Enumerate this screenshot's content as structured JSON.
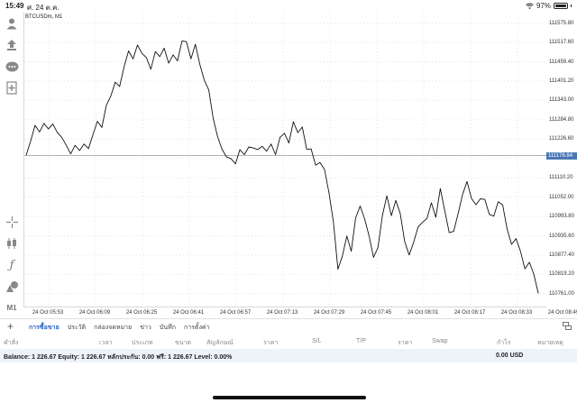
{
  "status_bar": {
    "time": "15:49",
    "date": "ศ. 24 ต.ค.",
    "battery": "97%"
  },
  "chart": {
    "symbol_label": "BTCUSDm, M1",
    "current_price": "111176.84",
    "y_ticks": [
      "111575.80",
      "111517.60",
      "111459.40",
      "111401.20",
      "111343.00",
      "111284.80",
      "111226.60",
      "111168.40",
      "111110.20",
      "111052.00",
      "110993.80",
      "110935.60",
      "110877.40",
      "110819.20",
      "110761.00"
    ],
    "x_ticks": [
      "24 Oct 05:53",
      "24 Oct 06:09",
      "24 Oct 06:25",
      "24 Oct 06:41",
      "24 Oct 06:57",
      "24 Oct 07:13",
      "24 Oct 07:29",
      "24 Oct 07:45",
      "24 Oct 08:01",
      "24 Oct 08:17",
      "24 Oct 08:33",
      "24 Oct 08:49"
    ]
  },
  "chart_data": {
    "type": "line",
    "title": "BTCUSDm, M1",
    "xlabel": "",
    "ylabel": "",
    "ylim": [
      110720,
      111610
    ],
    "current_price": 111176.84,
    "y_ticks": [
      111575.8,
      111517.6,
      111459.4,
      111401.2,
      111343.0,
      111284.8,
      111226.6,
      111168.4,
      111110.2,
      111052.0,
      110993.8,
      110935.6,
      110877.4,
      110819.2,
      110761.0
    ],
    "x_ticks": [
      "24 Oct 05:53",
      "24 Oct 06:09",
      "24 Oct 06:25",
      "24 Oct 06:41",
      "24 Oct 06:57",
      "24 Oct 07:13",
      "24 Oct 07:29",
      "24 Oct 07:45",
      "24 Oct 08:01",
      "24 Oct 08:17",
      "24 Oct 08:33",
      "24 Oct 08:49"
    ],
    "series": [
      {
        "color": "#111111",
        "x_index": [
          0,
          2,
          4,
          6,
          8,
          10,
          12,
          14,
          16,
          18,
          20,
          22,
          24,
          26,
          28,
          30,
          32,
          34,
          36,
          38,
          40,
          42,
          44,
          46,
          48,
          50,
          52,
          54,
          56,
          58,
          60,
          62,
          64,
          66,
          68,
          70,
          72,
          74,
          76,
          78,
          80,
          82,
          84,
          86,
          88,
          90,
          92,
          94,
          96,
          98,
          100,
          102,
          104,
          106,
          108,
          110,
          112,
          114,
          116,
          118,
          120,
          122,
          124,
          126,
          128,
          130,
          132,
          134,
          136,
          138,
          140,
          142,
          144,
          146,
          148,
          150,
          152,
          154,
          156,
          158,
          160,
          162,
          164,
          166,
          168,
          170,
          172,
          174,
          176,
          178,
          180,
          182,
          184,
          186,
          188,
          190,
          192,
          194,
          196,
          198,
          200,
          202,
          204,
          206,
          208,
          210,
          212,
          214,
          216,
          218,
          220,
          222,
          224,
          226,
          228,
          230
        ],
        "values": [
          111178,
          111220,
          111268,
          111248,
          111274,
          111257,
          111272,
          111246,
          111232,
          111208,
          111182,
          111208,
          111192,
          111212,
          111198,
          111240,
          111280,
          111262,
          111328,
          111356,
          111398,
          111385,
          111445,
          111492,
          111468,
          111510,
          111485,
          111472,
          111437,
          111490,
          111475,
          111500,
          111455,
          111480,
          111462,
          111522,
          111520,
          111468,
          111512,
          111452,
          111404,
          111375,
          111289,
          111233,
          111196,
          111173,
          111168,
          111152,
          111195,
          111180,
          111203,
          111200,
          111195,
          111205,
          111190,
          111212,
          111180,
          111232,
          111244,
          111215,
          111279,
          111246,
          111263,
          111196,
          111197,
          111148,
          111156,
          111135,
          111065,
          110978,
          110835,
          110874,
          110935,
          110889,
          110990,
          111025,
          110987,
          110935,
          110871,
          110900,
          110997,
          111056,
          110996,
          111042,
          111003,
          110918,
          110878,
          110916,
          110962,
          110976,
          110988,
          111035,
          110991,
          111078,
          111011,
          110945,
          110949,
          111002,
          111060,
          111099,
          111048,
          111029,
          111047,
          111045,
          111000,
          110995,
          111038,
          111029,
          110956,
          110910,
          110927,
          110889,
          110836,
          110856,
          110820,
          110762
        ]
      }
    ]
  },
  "left_tools": {
    "account_icon": "person-icon",
    "trade_icon": "trade-arrows-icon",
    "chat_icon": "chat-bubble-icon",
    "new_order_icon": "document-plus-icon",
    "crosshair_icon": "crosshair-icon",
    "chart_type_icon": "candlestick-icon",
    "indicator_icon": "function-icon",
    "objects_icon": "shapes-icon",
    "timeframe_label": "M1"
  },
  "bottom_tabs": [
    "การซื้อขาย",
    "ประวัติ",
    "กล่องจดหมาย",
    "ข่าว",
    "บันทึก",
    "การตั้งค่า"
  ],
  "table_headers": [
    "คำสั่ง",
    "เวลา",
    "ประเภท",
    "ขนาด",
    "สัญลักษณ์",
    "ราคา",
    "S/L",
    "T/P",
    "ราคา",
    "Swap",
    "กำไร",
    "หมายเหตุ"
  ],
  "balance": {
    "text": "Balance: 1 226.67 Equity: 1 226.67 หลักประกัน: 0.00 ฟรี: 1 226.67 Level: 0.00%",
    "total": "0.00  USD"
  }
}
